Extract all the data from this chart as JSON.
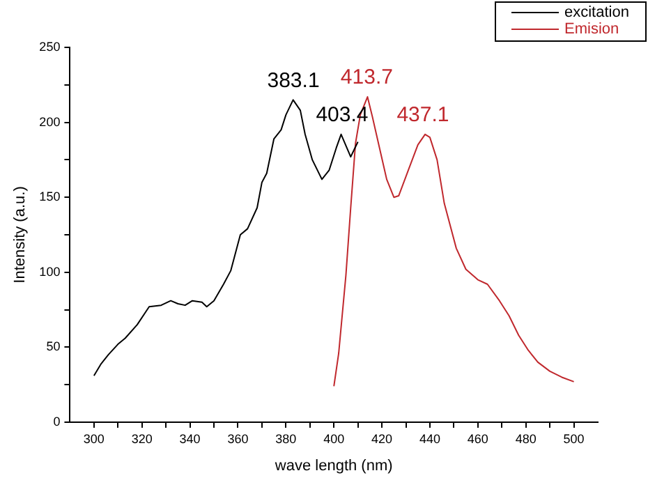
{
  "chart_data": {
    "type": "line",
    "xlabel": "wave length (nm)",
    "ylabel": "Intensity (a.u.)",
    "xlim": [
      290,
      510
    ],
    "ylim": [
      0,
      250
    ],
    "xticks": [
      300,
      {
        "value": 310,
        "label": null
      },
      320,
      {
        "value": 330,
        "label": null
      },
      340,
      {
        "value": 350,
        "label": null
      },
      360,
      {
        "value": 370,
        "label": null
      },
      380,
      {
        "value": 390,
        "label": null
      },
      400,
      {
        "value": 410,
        "label": null
      },
      420,
      {
        "value": 430,
        "label": null
      },
      440,
      {
        "value": 450,
        "label": null
      },
      460,
      {
        "value": 470,
        "label": null
      },
      480,
      {
        "value": 490,
        "label": null
      },
      500
    ],
    "yticks": [
      0,
      {
        "value": 25,
        "label": null
      },
      50,
      {
        "value": 75,
        "label": null
      },
      100,
      {
        "value": 125,
        "label": null
      },
      150,
      {
        "value": 175,
        "label": null
      },
      200,
      {
        "value": 225,
        "label": null
      },
      250
    ],
    "grid": false,
    "legend": "top right",
    "marker": "none",
    "line_style": "solid",
    "series": [
      {
        "name": "excitation",
        "color": "#000000",
        "x": [
          300,
          303,
          306,
          310,
          313,
          318,
          323,
          328,
          332,
          335,
          338,
          341,
          345,
          347,
          350,
          354,
          357,
          361,
          364,
          368,
          370,
          372,
          375,
          378,
          380,
          383,
          386,
          388,
          391,
          395,
          398,
          401,
          403,
          407,
          410
        ],
        "values": [
          31,
          39,
          45,
          52,
          56,
          65,
          77,
          78,
          81,
          79,
          78,
          81,
          80,
          77,
          81,
          92,
          101,
          125,
          129,
          143,
          160,
          166,
          189,
          195,
          205,
          215,
          208,
          192,
          175,
          162,
          168,
          183,
          192,
          177,
          187
        ]
      },
      {
        "name": "Emision",
        "color": "#c0282d",
        "x": [
          400,
          402,
          405,
          407,
          409,
          411,
          414,
          416,
          419,
          422,
          425,
          427,
          431,
          435,
          438,
          440,
          443,
          446,
          451,
          455,
          460,
          464,
          469,
          473,
          477,
          481,
          485,
          490,
          495,
          500
        ],
        "values": [
          24,
          46,
          98,
          143,
          186,
          205,
          217,
          204,
          183,
          162,
          150,
          151,
          168,
          185,
          192,
          190,
          175,
          146,
          116,
          102,
          95,
          92,
          81,
          71,
          58,
          48,
          40,
          34,
          30,
          27
        ]
      }
    ],
    "annotations": [
      {
        "text": "383.1",
        "x": 383.1,
        "y": 215
      },
      {
        "text": "403.4",
        "x": 403.4,
        "y": 192
      },
      {
        "text": "413.7",
        "x": 413.7,
        "y": 217
      },
      {
        "text": "437.1",
        "x": 437.1,
        "y": 192
      }
    ]
  }
}
